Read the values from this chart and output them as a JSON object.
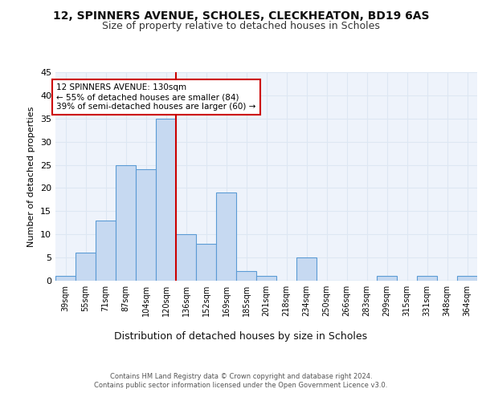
{
  "title1": "12, SPINNERS AVENUE, SCHOLES, CLECKHEATON, BD19 6AS",
  "title2": "Size of property relative to detached houses in Scholes",
  "xlabel": "Distribution of detached houses by size in Scholes",
  "ylabel": "Number of detached properties",
  "bar_labels": [
    "39sqm",
    "55sqm",
    "71sqm",
    "87sqm",
    "104sqm",
    "120sqm",
    "136sqm",
    "152sqm",
    "169sqm",
    "185sqm",
    "201sqm",
    "218sqm",
    "234sqm",
    "250sqm",
    "266sqm",
    "283sqm",
    "299sqm",
    "315sqm",
    "331sqm",
    "348sqm",
    "364sqm"
  ],
  "bar_values": [
    1,
    6,
    13,
    25,
    24,
    35,
    10,
    8,
    19,
    2,
    1,
    0,
    5,
    0,
    0,
    0,
    1,
    0,
    1,
    0,
    1
  ],
  "bar_color": "#c6d9f1",
  "bar_edge_color": "#5b9bd5",
  "vline_x": 5.5,
  "vline_color": "#cc0000",
  "annotation_text": "12 SPINNERS AVENUE: 130sqm\n← 55% of detached houses are smaller (84)\n39% of semi-detached houses are larger (60) →",
  "annotation_box_color": "#cc0000",
  "ylim": [
    0,
    45
  ],
  "yticks": [
    0,
    5,
    10,
    15,
    20,
    25,
    30,
    35,
    40,
    45
  ],
  "grid_color": "#dde7f3",
  "background_color": "#eef3fb",
  "footer1": "Contains HM Land Registry data © Crown copyright and database right 2024.",
  "footer2": "Contains public sector information licensed under the Open Government Licence v3.0."
}
